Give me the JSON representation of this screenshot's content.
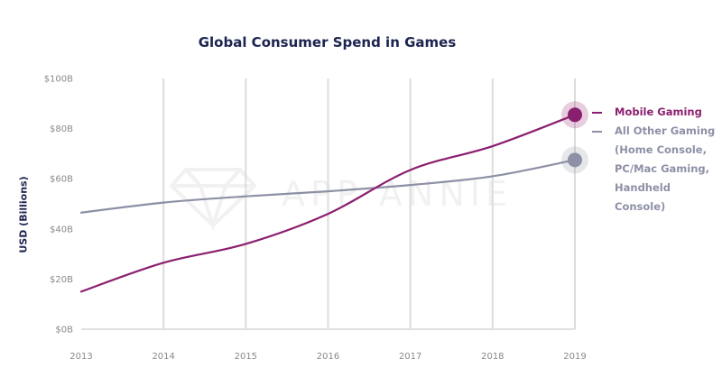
{
  "chart_data": {
    "type": "line",
    "title": "Global Consumer Spend in Games",
    "ylabel": "USD (Billions)",
    "xlabel": "",
    "x": [
      "2013",
      "2014",
      "2015",
      "2016",
      "2017",
      "2018",
      "2019"
    ],
    "y_ticks": [
      "$0B",
      "$20B",
      "$40B",
      "$60B",
      "$80B",
      "$100B"
    ],
    "ylim": [
      0,
      100
    ],
    "grid": "vertical",
    "legend_position": "right",
    "series": [
      {
        "name": "Mobile Gaming",
        "color": "#8b1f6f",
        "label_lines": [
          "Mobile Gaming"
        ],
        "values": [
          15,
          26.5,
          34,
          46,
          63.5,
          73,
          85.5
        ]
      },
      {
        "name": "All Other Gaming (Home Console, PC/Mac Gaming, Handheld Console)",
        "color": "#8d90a6",
        "label_lines": [
          "All Other Gaming",
          "(Home Console,",
          "PC/Mac Gaming,",
          "Handheld Console)"
        ],
        "values": [
          46.5,
          50.5,
          53,
          55,
          57.5,
          61,
          67.5
        ]
      }
    ]
  },
  "watermark": "APP ANNIE"
}
